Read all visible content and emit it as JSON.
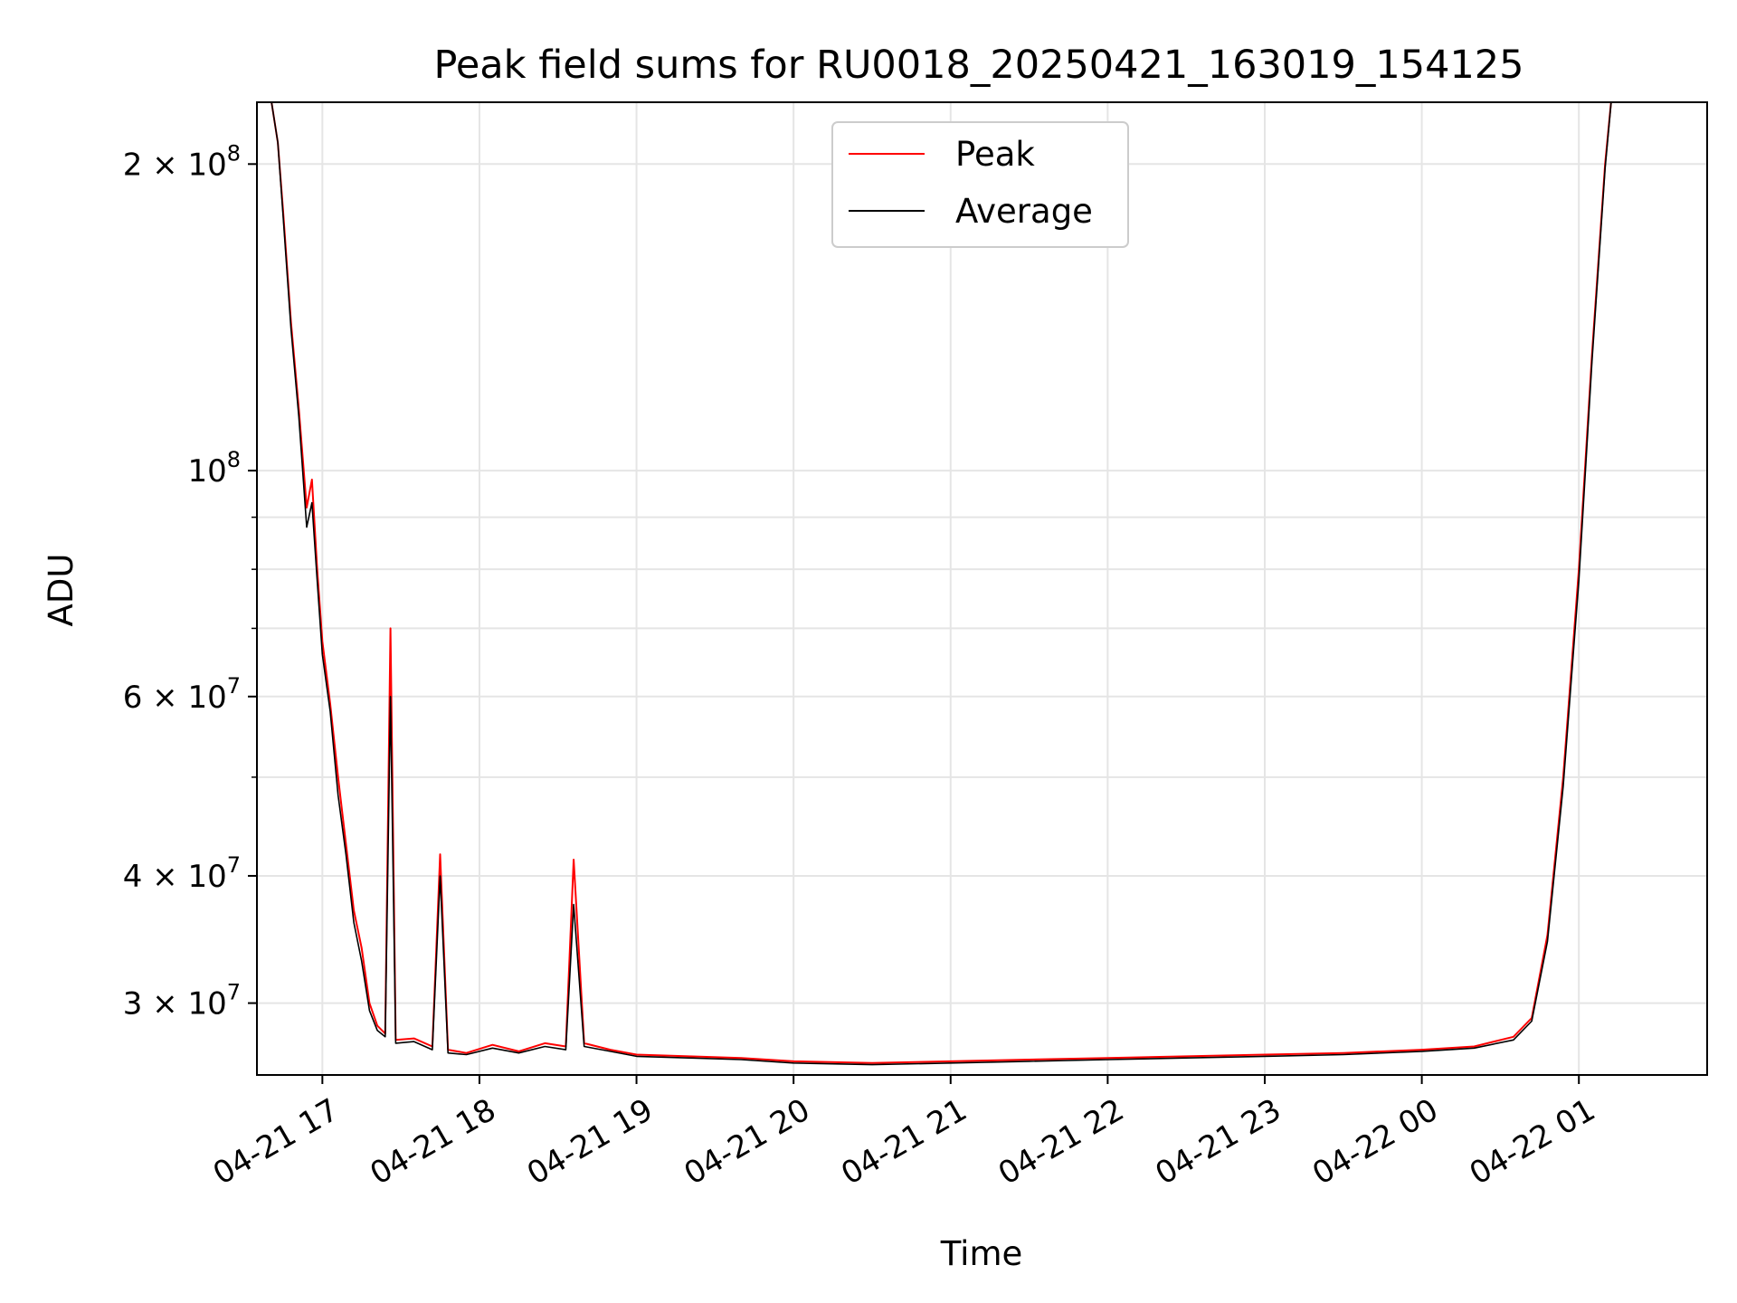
{
  "chart_data": {
    "type": "line",
    "title": "Peak field sums for RU0018_20250421_163019_154125",
    "xlabel": "Time",
    "ylabel": "ADU",
    "y_scale": "log",
    "grid": true,
    "legend_position": "top-center",
    "xlim": [
      "2025-04-21 16:35",
      "2025-04-22 01:49"
    ],
    "ylim": [
      25500000,
      230000000
    ],
    "x_ticks": [
      {
        "value": "2025-04-21 17:00",
        "label": "04-21 17"
      },
      {
        "value": "2025-04-21 18:00",
        "label": "04-21 18"
      },
      {
        "value": "2025-04-21 19:00",
        "label": "04-21 19"
      },
      {
        "value": "2025-04-21 20:00",
        "label": "04-21 20"
      },
      {
        "value": "2025-04-21 21:00",
        "label": "04-21 21"
      },
      {
        "value": "2025-04-21 22:00",
        "label": "04-21 22"
      },
      {
        "value": "2025-04-21 23:00",
        "label": "04-21 23"
      },
      {
        "value": "2025-04-22 00:00",
        "label": "04-22 00"
      },
      {
        "value": "2025-04-22 01:00",
        "label": "04-22 01"
      }
    ],
    "y_ticks": [
      {
        "value": 30000000,
        "mantissa": "3",
        "exponent": "7"
      },
      {
        "value": 40000000,
        "mantissa": "4",
        "exponent": "7"
      },
      {
        "value": 60000000,
        "mantissa": "6",
        "exponent": "7"
      },
      {
        "value": 100000000,
        "mantissa": "",
        "exponent": "8"
      },
      {
        "value": 200000000,
        "mantissa": "2",
        "exponent": "8"
      }
    ],
    "y_minor_ticks": [
      50000000,
      70000000,
      80000000,
      90000000
    ],
    "series": [
      {
        "name": "Peak",
        "color": "#ff0000",
        "points": [
          [
            "2025-04-21 16:40",
            235000000
          ],
          [
            "2025-04-21 16:43",
            210000000
          ],
          [
            "2025-04-21 16:45",
            180000000
          ],
          [
            "2025-04-21 16:48",
            140000000
          ],
          [
            "2025-04-21 16:51",
            115000000
          ],
          [
            "2025-04-21 16:54",
            92000000
          ],
          [
            "2025-04-21 16:56",
            98000000
          ],
          [
            "2025-04-21 16:58",
            80000000
          ],
          [
            "2025-04-21 17:00",
            68000000
          ],
          [
            "2025-04-21 17:03",
            59000000
          ],
          [
            "2025-04-21 17:06",
            50000000
          ],
          [
            "2025-04-21 17:09",
            43000000
          ],
          [
            "2025-04-21 17:12",
            37000000
          ],
          [
            "2025-04-21 17:15",
            34000000
          ],
          [
            "2025-04-21 17:18",
            30000000
          ],
          [
            "2025-04-21 17:21",
            28500000
          ],
          [
            "2025-04-21 17:24",
            28000000
          ],
          [
            "2025-04-21 17:26",
            70000000
          ],
          [
            "2025-04-21 17:28",
            27600000
          ],
          [
            "2025-04-21 17:35",
            27700000
          ],
          [
            "2025-04-21 17:42",
            27200000
          ],
          [
            "2025-04-21 17:45",
            42000000
          ],
          [
            "2025-04-21 17:48",
            27000000
          ],
          [
            "2025-04-21 17:55",
            26800000
          ],
          [
            "2025-04-21 18:05",
            27300000
          ],
          [
            "2025-04-21 18:15",
            26900000
          ],
          [
            "2025-04-21 18:25",
            27400000
          ],
          [
            "2025-04-21 18:33",
            27200000
          ],
          [
            "2025-04-21 18:36",
            41500000
          ],
          [
            "2025-04-21 18:40",
            27400000
          ],
          [
            "2025-04-21 18:50",
            27000000
          ],
          [
            "2025-04-21 19:00",
            26700000
          ],
          [
            "2025-04-21 19:20",
            26600000
          ],
          [
            "2025-04-21 19:40",
            26500000
          ],
          [
            "2025-04-21 20:00",
            26300000
          ],
          [
            "2025-04-21 20:30",
            26200000
          ],
          [
            "2025-04-21 21:00",
            26300000
          ],
          [
            "2025-04-21 21:30",
            26400000
          ],
          [
            "2025-04-21 22:00",
            26500000
          ],
          [
            "2025-04-21 22:30",
            26600000
          ],
          [
            "2025-04-21 23:00",
            26700000
          ],
          [
            "2025-04-21 23:30",
            26800000
          ],
          [
            "2025-04-22 00:00",
            27000000
          ],
          [
            "2025-04-22 00:20",
            27200000
          ],
          [
            "2025-04-22 00:35",
            27800000
          ],
          [
            "2025-04-22 00:42",
            29000000
          ],
          [
            "2025-04-22 00:48",
            35000000
          ],
          [
            "2025-04-22 00:54",
            50000000
          ],
          [
            "2025-04-22 01:00",
            80000000
          ],
          [
            "2025-04-22 01:05",
            130000000
          ],
          [
            "2025-04-22 01:10",
            200000000
          ],
          [
            "2025-04-22 01:13",
            240000000
          ]
        ]
      },
      {
        "name": "Average",
        "color": "#000000",
        "points": [
          [
            "2025-04-21 16:40",
            235000000
          ],
          [
            "2025-04-21 16:43",
            210000000
          ],
          [
            "2025-04-21 16:45",
            178000000
          ],
          [
            "2025-04-21 16:48",
            138000000
          ],
          [
            "2025-04-21 16:51",
            113000000
          ],
          [
            "2025-04-21 16:54",
            88000000
          ],
          [
            "2025-04-21 16:56",
            93000000
          ],
          [
            "2025-04-21 16:58",
            78000000
          ],
          [
            "2025-04-21 17:00",
            66000000
          ],
          [
            "2025-04-21 17:03",
            58000000
          ],
          [
            "2025-04-21 17:06",
            48000000
          ],
          [
            "2025-04-21 17:09",
            42000000
          ],
          [
            "2025-04-21 17:12",
            36000000
          ],
          [
            "2025-04-21 17:15",
            33000000
          ],
          [
            "2025-04-21 17:18",
            29500000
          ],
          [
            "2025-04-21 17:21",
            28200000
          ],
          [
            "2025-04-21 17:24",
            27800000
          ],
          [
            "2025-04-21 17:26",
            60000000
          ],
          [
            "2025-04-21 17:28",
            27400000
          ],
          [
            "2025-04-21 17:35",
            27500000
          ],
          [
            "2025-04-21 17:42",
            27000000
          ],
          [
            "2025-04-21 17:45",
            40000000
          ],
          [
            "2025-04-21 17:48",
            26800000
          ],
          [
            "2025-04-21 17:55",
            26700000
          ],
          [
            "2025-04-21 18:05",
            27100000
          ],
          [
            "2025-04-21 18:15",
            26800000
          ],
          [
            "2025-04-21 18:25",
            27200000
          ],
          [
            "2025-04-21 18:33",
            27000000
          ],
          [
            "2025-04-21 18:36",
            37500000
          ],
          [
            "2025-04-21 18:40",
            27200000
          ],
          [
            "2025-04-21 18:50",
            26900000
          ],
          [
            "2025-04-21 19:00",
            26600000
          ],
          [
            "2025-04-21 19:20",
            26500000
          ],
          [
            "2025-04-21 19:40",
            26400000
          ],
          [
            "2025-04-21 20:00",
            26200000
          ],
          [
            "2025-04-21 20:30",
            26100000
          ],
          [
            "2025-04-21 21:00",
            26200000
          ],
          [
            "2025-04-21 21:30",
            26300000
          ],
          [
            "2025-04-21 22:00",
            26400000
          ],
          [
            "2025-04-21 22:30",
            26500000
          ],
          [
            "2025-04-21 23:00",
            26600000
          ],
          [
            "2025-04-21 23:30",
            26700000
          ],
          [
            "2025-04-22 00:00",
            26900000
          ],
          [
            "2025-04-22 00:20",
            27100000
          ],
          [
            "2025-04-22 00:35",
            27600000
          ],
          [
            "2025-04-22 00:42",
            28800000
          ],
          [
            "2025-04-22 00:48",
            34500000
          ],
          [
            "2025-04-22 00:54",
            49000000
          ],
          [
            "2025-04-22 01:00",
            78000000
          ],
          [
            "2025-04-22 01:05",
            128000000
          ],
          [
            "2025-04-22 01:10",
            198000000
          ],
          [
            "2025-04-22 01:13",
            240000000
          ]
        ]
      }
    ]
  }
}
